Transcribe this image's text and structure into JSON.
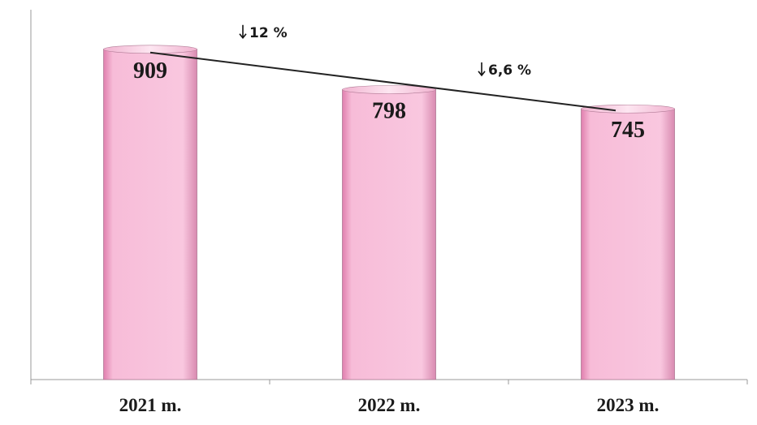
{
  "chart_data": {
    "type": "bar",
    "categories": [
      "2021 m.",
      "2022 m.",
      "2023 m."
    ],
    "values": [
      909,
      798,
      745
    ],
    "data_labels": [
      "909",
      "798",
      "745"
    ],
    "title": "",
    "xlabel": "",
    "ylabel": "",
    "ylim": [
      0,
      1000
    ],
    "grid": false,
    "legend": "none",
    "bar_color": "#f7bcd8",
    "bar_edge_color": "#b07a95",
    "trendline": true,
    "annotations": [
      {
        "icon": "down-arrow-icon",
        "text": "12 %"
      },
      {
        "icon": "down-arrow-icon",
        "text": "6,6 %"
      }
    ]
  }
}
